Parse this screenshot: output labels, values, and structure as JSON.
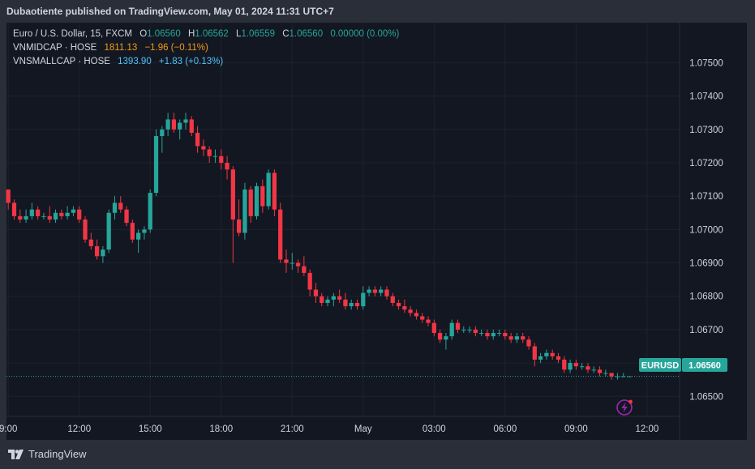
{
  "header": {
    "publisher_text": "Dubaotiente published on TradingView.com, May 01, 2024 11:31 UTC+7"
  },
  "legend": {
    "main": {
      "symbol": "Euro / U.S. Dollar, 15, FXCM",
      "o_label": "O",
      "o": "1.06560",
      "h_label": "H",
      "h": "1.06562",
      "l_label": "L",
      "l": "1.06559",
      "c_label": "C",
      "c": "1.06560",
      "change": "0.00000 (0.00%)"
    },
    "vnmidcap": {
      "label": "VNMIDCAP · HOSE",
      "value": "1811.13",
      "change": "−1.96 (−0.11%)"
    },
    "vnsmallcap": {
      "label": "VNSMALLCAP · HOSE",
      "value": "1393.90",
      "change": "+1.83 (+0.13%)"
    }
  },
  "price_tag": {
    "symbol": "EURUSD",
    "price": "1.06560"
  },
  "footer": {
    "brand": "TradingView"
  },
  "colors": {
    "up": "#26a69a",
    "down": "#f23645",
    "background": "#131722",
    "grid": "#1e222d",
    "text": "#d1d4dc",
    "orange": "#f39c12",
    "cyan": "#4fc3f7"
  },
  "icons": {
    "bolt": "lightning-bolt-icon"
  },
  "chart_data": {
    "type": "candlestick",
    "interval": "15",
    "y_ticks": [
      "1.07500",
      "1.07400",
      "1.07300",
      "1.07200",
      "1.07100",
      "1.07000",
      "1.06900",
      "1.06800",
      "1.06700",
      "1.06600",
      "1.06500"
    ],
    "x_ticks": [
      {
        "label": "9:00",
        "t": 0
      },
      {
        "label": "12:00",
        "t": 12
      },
      {
        "label": "15:00",
        "t": 24
      },
      {
        "label": "18:00",
        "t": 36
      },
      {
        "label": "21:00",
        "t": 48
      },
      {
        "label": "May",
        "t": 60
      },
      {
        "label": "03:00",
        "t": 72
      },
      {
        "label": "06:00",
        "t": 84
      },
      {
        "label": "09:00",
        "t": 96
      },
      {
        "label": "12:00",
        "t": 108
      }
    ],
    "ylim": [
      1.0644,
      1.0762
    ],
    "xlim": [
      -0.3,
      113.5
    ],
    "last_price": 1.0656,
    "candles": [
      [
        1.0712,
        1.0712,
        1.0706,
        1.0708
      ],
      [
        1.0708,
        1.0709,
        1.0703,
        1.0704
      ],
      [
        1.0704,
        1.0706,
        1.0702,
        1.0703
      ],
      [
        1.0703,
        1.0706,
        1.0702,
        1.0704
      ],
      [
        1.0704,
        1.0708,
        1.0703,
        1.0706
      ],
      [
        1.0706,
        1.0707,
        1.0703,
        1.0704
      ],
      [
        1.0704,
        1.0705,
        1.0703,
        1.0704
      ],
      [
        1.0704,
        1.0707,
        1.0702,
        1.0703
      ],
      [
        1.0703,
        1.0706,
        1.0702,
        1.0705
      ],
      [
        1.0705,
        1.0706,
        1.0703,
        1.0704
      ],
      [
        1.0704,
        1.0707,
        1.0703,
        1.0705
      ],
      [
        1.0705,
        1.0707,
        1.0704,
        1.0706
      ],
      [
        1.0706,
        1.0707,
        1.0702,
        1.0703
      ],
      [
        1.0703,
        1.0704,
        1.0696,
        1.0697
      ],
      [
        1.0697,
        1.0699,
        1.0694,
        1.0695
      ],
      [
        1.0695,
        1.0697,
        1.0691,
        1.0692
      ],
      [
        1.0692,
        1.0695,
        1.069,
        1.0694
      ],
      [
        1.0694,
        1.0706,
        1.0693,
        1.0705
      ],
      [
        1.0705,
        1.071,
        1.0703,
        1.0708
      ],
      [
        1.0708,
        1.071,
        1.0705,
        1.0706
      ],
      [
        1.0706,
        1.0707,
        1.0701,
        1.0702
      ],
      [
        1.0702,
        1.0703,
        1.0696,
        1.0697
      ],
      [
        1.0697,
        1.07,
        1.0693,
        1.0699
      ],
      [
        1.0699,
        1.0701,
        1.0697,
        1.07
      ],
      [
        1.07,
        1.0712,
        1.0699,
        1.0711
      ],
      [
        1.0711,
        1.073,
        1.071,
        1.0728
      ],
      [
        1.0728,
        1.0731,
        1.0723,
        1.073
      ],
      [
        1.073,
        1.0735,
        1.0728,
        1.0733
      ],
      [
        1.0733,
        1.0735,
        1.0729,
        1.073
      ],
      [
        1.073,
        1.0733,
        1.0727,
        1.0732
      ],
      [
        1.0732,
        1.0735,
        1.073,
        1.0733
      ],
      [
        1.0733,
        1.0734,
        1.0728,
        1.0729
      ],
      [
        1.0729,
        1.0731,
        1.0723,
        1.0725
      ],
      [
        1.0725,
        1.0727,
        1.0722,
        1.0724
      ],
      [
        1.0724,
        1.0725,
        1.072,
        1.0722
      ],
      [
        1.0722,
        1.0724,
        1.072,
        1.0722
      ],
      [
        1.0722,
        1.0724,
        1.0718,
        1.072
      ],
      [
        1.072,
        1.0722,
        1.0715,
        1.0718
      ],
      [
        1.0718,
        1.0719,
        1.069,
        1.0703
      ],
      [
        1.0703,
        1.0709,
        1.0698,
        1.0699
      ],
      [
        1.0699,
        1.0714,
        1.0697,
        1.0712
      ],
      [
        1.0712,
        1.0713,
        1.0702,
        1.0704
      ],
      [
        1.0704,
        1.0714,
        1.0703,
        1.0713
      ],
      [
        1.0713,
        1.0715,
        1.0705,
        1.0707
      ],
      [
        1.0707,
        1.0718,
        1.0706,
        1.0717
      ],
      [
        1.0717,
        1.0718,
        1.0704,
        1.0706
      ],
      [
        1.0706,
        1.0708,
        1.069,
        1.0691
      ],
      [
        1.0691,
        1.0694,
        1.0687,
        1.069
      ],
      [
        1.069,
        1.0693,
        1.0688,
        1.069
      ],
      [
        1.069,
        1.0691,
        1.0687,
        1.0689
      ],
      [
        1.0689,
        1.0692,
        1.0686,
        1.0687
      ],
      [
        1.0687,
        1.0688,
        1.068,
        1.0682
      ],
      [
        1.0682,
        1.0684,
        1.0678,
        1.068
      ],
      [
        1.068,
        1.0681,
        1.0677,
        1.0678
      ],
      [
        1.0678,
        1.068,
        1.0677,
        1.0679
      ],
      [
        1.0679,
        1.0681,
        1.0677,
        1.068
      ],
      [
        1.068,
        1.0682,
        1.0678,
        1.0679
      ],
      [
        1.0679,
        1.0681,
        1.0676,
        1.0677
      ],
      [
        1.0677,
        1.0679,
        1.0676,
        1.0678
      ],
      [
        1.0678,
        1.0679,
        1.0676,
        1.0677
      ],
      [
        1.0677,
        1.0683,
        1.0676,
        1.0681
      ],
      [
        1.0681,
        1.0683,
        1.068,
        1.0682
      ],
      [
        1.0682,
        1.0683,
        1.068,
        1.0681
      ],
      [
        1.0681,
        1.0683,
        1.068,
        1.0682
      ],
      [
        1.0682,
        1.0683,
        1.0679,
        1.068
      ],
      [
        1.068,
        1.0681,
        1.0677,
        1.0678
      ],
      [
        1.0678,
        1.0679,
        1.0676,
        1.0677
      ],
      [
        1.0677,
        1.0679,
        1.0675,
        1.0676
      ],
      [
        1.0676,
        1.0677,
        1.0674,
        1.0675
      ],
      [
        1.0675,
        1.0676,
        1.0673,
        1.0674
      ],
      [
        1.0674,
        1.0675,
        1.0672,
        1.0673
      ],
      [
        1.0673,
        1.0674,
        1.0671,
        1.0672
      ],
      [
        1.0672,
        1.0673,
        1.0668,
        1.0669
      ],
      [
        1.0669,
        1.067,
        1.0666,
        1.0667
      ],
      [
        1.0667,
        1.0669,
        1.0664,
        1.0668
      ],
      [
        1.0668,
        1.0673,
        1.0667,
        1.0672
      ],
      [
        1.0672,
        1.0673,
        1.0669,
        1.067
      ],
      [
        1.067,
        1.0671,
        1.0669,
        1.067
      ],
      [
        1.067,
        1.0671,
        1.0669,
        1.067
      ],
      [
        1.067,
        1.0671,
        1.0668,
        1.0669
      ],
      [
        1.0669,
        1.067,
        1.0668,
        1.0669
      ],
      [
        1.0669,
        1.067,
        1.0667,
        1.0668
      ],
      [
        1.0668,
        1.067,
        1.0667,
        1.0669
      ],
      [
        1.0669,
        1.067,
        1.0668,
        1.0669
      ],
      [
        1.0669,
        1.067,
        1.0667,
        1.0668
      ],
      [
        1.0668,
        1.0669,
        1.0666,
        1.0667
      ],
      [
        1.0667,
        1.0669,
        1.0666,
        1.0668
      ],
      [
        1.0668,
        1.0669,
        1.0666,
        1.0667
      ],
      [
        1.0667,
        1.0668,
        1.0664,
        1.0665
      ],
      [
        1.0665,
        1.0666,
        1.0659,
        1.0661
      ],
      [
        1.0661,
        1.0663,
        1.066,
        1.0662
      ],
      [
        1.0662,
        1.0664,
        1.0661,
        1.0663
      ],
      [
        1.0663,
        1.0664,
        1.0661,
        1.0662
      ],
      [
        1.0662,
        1.0663,
        1.066,
        1.0661
      ],
      [
        1.0661,
        1.0662,
        1.0657,
        1.0658
      ],
      [
        1.0658,
        1.0661,
        1.0657,
        1.066
      ],
      [
        1.066,
        1.0661,
        1.0658,
        1.0659
      ],
      [
        1.0659,
        1.066,
        1.0658,
        1.0659
      ],
      [
        1.0659,
        1.066,
        1.0657,
        1.0658
      ],
      [
        1.0658,
        1.0659,
        1.0657,
        1.0658
      ],
      [
        1.0658,
        1.0659,
        1.0656,
        1.0657
      ],
      [
        1.0657,
        1.0658,
        1.0656,
        1.0657
      ],
      [
        1.0657,
        1.0657,
        1.0655,
        1.0656
      ],
      [
        1.0656,
        1.0657,
        1.0655,
        1.0656
      ],
      [
        1.0656,
        1.0657,
        1.0656,
        1.0656
      ],
      [
        1.0656,
        1.0656,
        1.0656,
        1.0656
      ]
    ]
  }
}
